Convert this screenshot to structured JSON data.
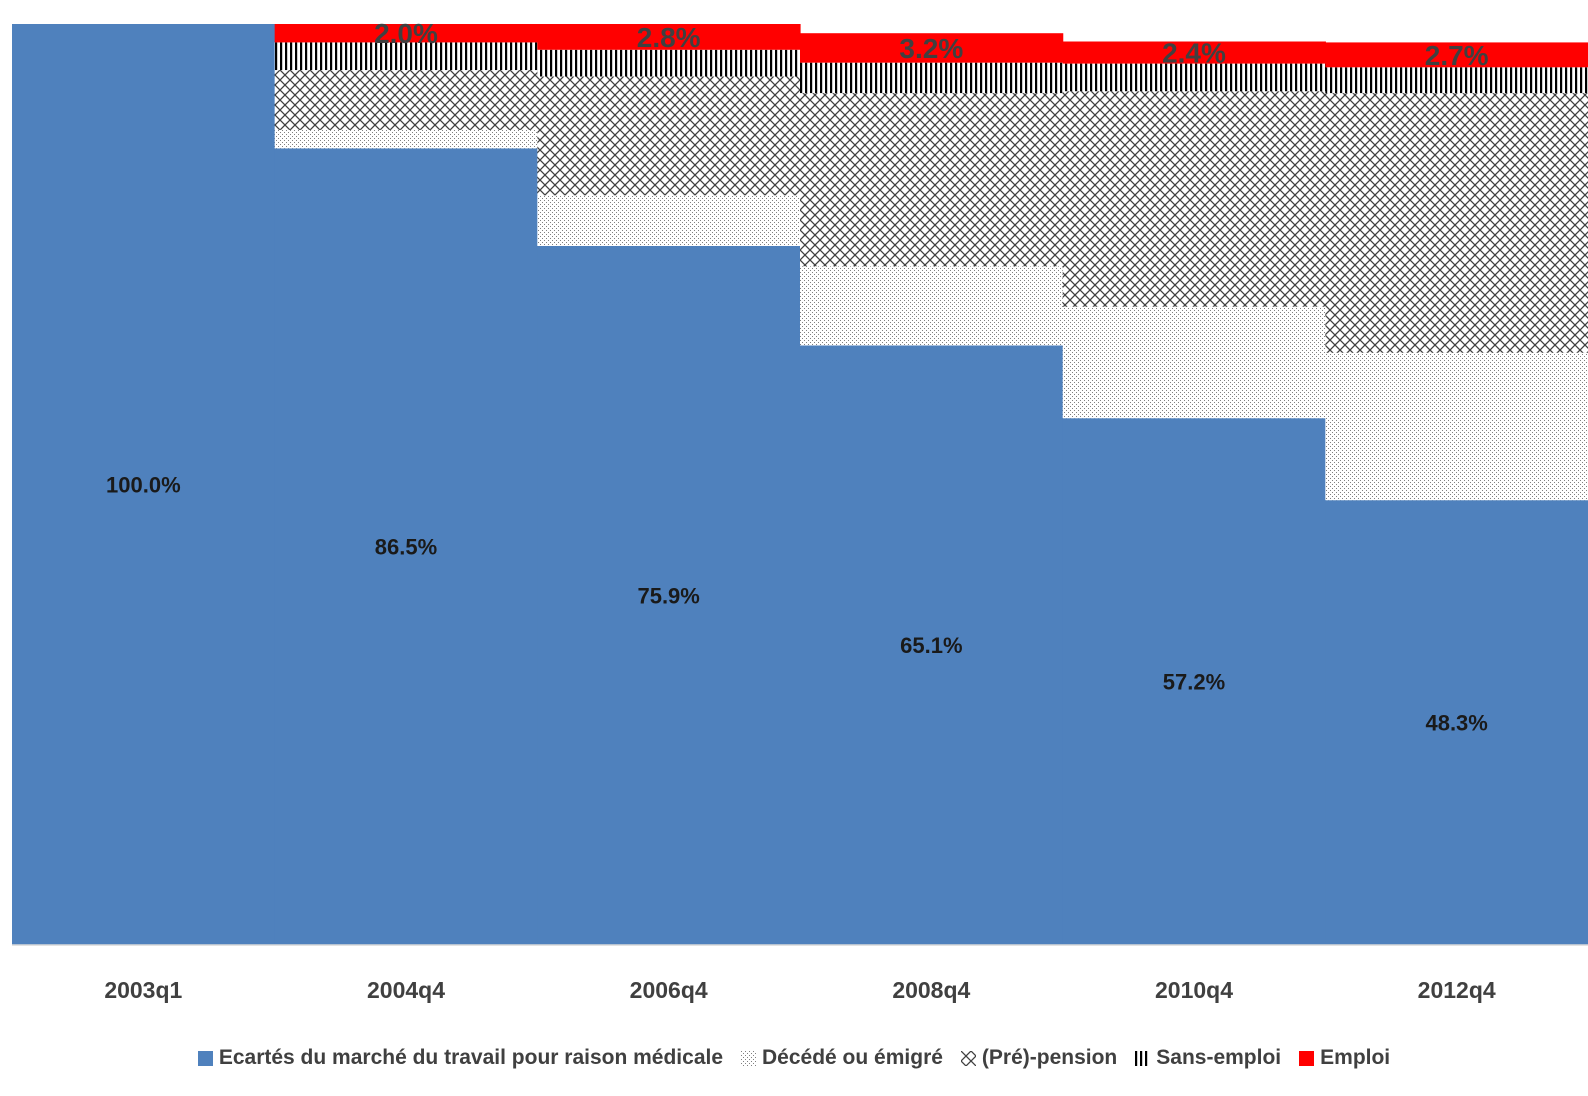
{
  "chart_data": {
    "type": "bar",
    "stacked": true,
    "categories": [
      "2003q1",
      "2004q4",
      "2006q4",
      "2008q4",
      "2010q4",
      "2012q4"
    ],
    "ylim": [
      0,
      100
    ],
    "grid": false,
    "legend_position": "bottom",
    "series": [
      {
        "name": "Ecartés du marché du travail pour raison médicale",
        "color": "#4f81bd",
        "pattern": "solid",
        "values": [
          100.0,
          86.5,
          75.9,
          65.1,
          57.2,
          48.3
        ],
        "labels": [
          "100.0%",
          "86.5%",
          "75.9%",
          "65.1%",
          "57.2%",
          "48.3%"
        ]
      },
      {
        "name": "Décédé ou émigré",
        "color": "#808080",
        "pattern": "dots",
        "values": [
          0,
          2.0,
          5.5,
          8.6,
          12.1,
          16.0
        ]
      },
      {
        "name": "(Pré)-pension",
        "color": "#404040",
        "pattern": "crosshatch",
        "values": [
          0,
          6.5,
          12.9,
          18.8,
          23.4,
          28.2
        ]
      },
      {
        "name": "Sans-emploi",
        "color": "#000000",
        "pattern": "vertical",
        "values": [
          0,
          3.0,
          2.9,
          3.3,
          3.0,
          2.8
        ]
      },
      {
        "name": "Emploi",
        "color": "#ff0000",
        "pattern": "solid",
        "values": [
          0,
          2.0,
          2.8,
          3.2,
          2.4,
          2.7
        ],
        "labels": [
          "",
          "2.0%",
          "2.8%",
          "3.2%",
          "2.4%",
          "2.7%"
        ]
      }
    ]
  }
}
